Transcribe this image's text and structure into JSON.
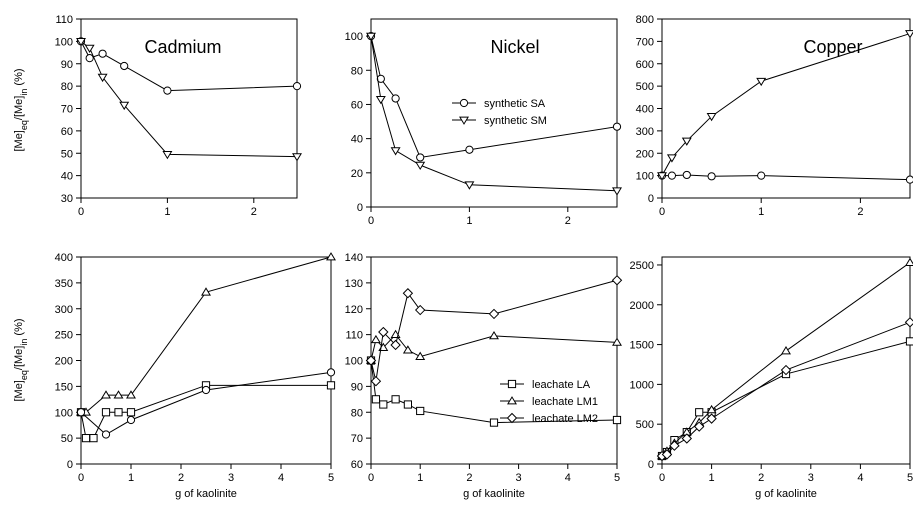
{
  "figure": {
    "ylabel_top": "[Me]eq/[Me]in (%)",
    "ylabel_bottom": "[Me]eq/[Me]in (%)",
    "xlabel_bottom": [
      "g of kaolinite",
      "g of kaolinite",
      "g of kaolinite"
    ]
  },
  "chart_data": [
    {
      "type": "line",
      "title": "Cadmium",
      "xlim": [
        0,
        2.5
      ],
      "ylim": [
        30,
        110
      ],
      "xticks": [
        0,
        1,
        2
      ],
      "yticks": [
        30,
        40,
        50,
        60,
        70,
        80,
        90,
        100,
        110
      ],
      "series": [
        {
          "name": "synthetic SA",
          "marker": "circle",
          "x": [
            0,
            0.1,
            0.25,
            0.5,
            1.0,
            2.5
          ],
          "y": [
            100,
            92.5,
            94.5,
            89,
            78,
            80
          ]
        },
        {
          "name": "synthetic SM",
          "marker": "triangle-down",
          "x": [
            0,
            0.1,
            0.25,
            0.5,
            1.0,
            2.5
          ],
          "y": [
            100,
            97,
            84,
            71.5,
            49.5,
            48.5
          ]
        }
      ]
    },
    {
      "type": "line",
      "title": "Nickel",
      "xlim": [
        0,
        2.5
      ],
      "ylim": [
        0,
        110
      ],
      "xticks": [
        0,
        1,
        2
      ],
      "yticks": [
        0,
        20,
        40,
        60,
        80,
        100
      ],
      "legend": {
        "placement": "center-right",
        "entries": [
          "synthetic SA",
          "synthetic SM"
        ]
      },
      "series": [
        {
          "name": "synthetic SA",
          "marker": "circle",
          "x": [
            0,
            0.1,
            0.25,
            0.5,
            1.0,
            2.5
          ],
          "y": [
            100,
            75,
            63.5,
            29,
            33.5,
            47
          ]
        },
        {
          "name": "synthetic SM",
          "marker": "triangle-down",
          "x": [
            0,
            0.1,
            0.25,
            0.5,
            1.0,
            2.5
          ],
          "y": [
            100,
            63,
            33,
            24.5,
            13,
            9.5
          ]
        }
      ]
    },
    {
      "type": "line",
      "title": "Copper",
      "xlim": [
        0,
        2.5
      ],
      "ylim": [
        0,
        800
      ],
      "xticks": [
        0,
        1,
        2
      ],
      "yticks": [
        0,
        100,
        200,
        300,
        400,
        500,
        600,
        700,
        800
      ],
      "series": [
        {
          "name": "synthetic SA",
          "marker": "circle",
          "x": [
            0,
            0.1,
            0.25,
            0.5,
            1.0,
            2.5
          ],
          "y": [
            100,
            100,
            103,
            97,
            100,
            82
          ]
        },
        {
          "name": "synthetic SM",
          "marker": "triangle-down",
          "x": [
            0,
            0.1,
            0.25,
            0.5,
            1.0,
            2.5
          ],
          "y": [
            100,
            180,
            255,
            365,
            522,
            735
          ]
        }
      ]
    },
    {
      "type": "line",
      "xlabel": "g of kaolinite",
      "xlim": [
        0,
        5
      ],
      "ylim": [
        0,
        400
      ],
      "xticks": [
        0,
        1,
        2,
        3,
        4,
        5
      ],
      "yticks": [
        0,
        50,
        100,
        150,
        200,
        250,
        300,
        350,
        400
      ],
      "series": [
        {
          "name": "leachate LA",
          "marker": "square",
          "x": [
            0,
            0.1,
            0.25,
            0.5,
            0.75,
            1.0,
            2.5,
            5
          ],
          "y": [
            100,
            50,
            50,
            100,
            100,
            100,
            152,
            152
          ]
        },
        {
          "name": "leachate LM1",
          "marker": "triangle-up",
          "x": [
            0,
            0.1,
            0.5,
            0.75,
            1.0,
            2.5,
            5
          ],
          "y": [
            100,
            100,
            133,
            133,
            133,
            332,
            400
          ]
        },
        {
          "name": "leachate LM2",
          "marker": "circle",
          "x": [
            0,
            0.5,
            1.0,
            2.5,
            5
          ],
          "y": [
            100,
            57,
            85,
            143,
            177
          ]
        }
      ]
    },
    {
      "type": "line",
      "xlabel": "g of kaolinite",
      "xlim": [
        0,
        5
      ],
      "ylim": [
        60,
        140
      ],
      "xticks": [
        0,
        1,
        2,
        3,
        4,
        5
      ],
      "yticks": [
        60,
        70,
        80,
        90,
        100,
        110,
        120,
        130,
        140
      ],
      "legend": {
        "placement": "lower-right",
        "entries": [
          "leachate LA",
          "leachate LM1",
          "leachate LM2"
        ]
      },
      "series": [
        {
          "name": "leachate LA",
          "marker": "square",
          "x": [
            0,
            0.1,
            0.25,
            0.5,
            0.75,
            1.0,
            2.5,
            5
          ],
          "y": [
            100,
            85,
            83,
            85,
            83,
            80.5,
            76,
            77
          ]
        },
        {
          "name": "leachate LM1",
          "marker": "triangle-up",
          "x": [
            0,
            0.1,
            0.25,
            0.5,
            0.75,
            1.0,
            2.5,
            5
          ],
          "y": [
            100,
            108,
            105,
            110,
            104,
            101.5,
            109.5,
            107
          ]
        },
        {
          "name": "leachate LM2",
          "marker": "diamond",
          "x": [
            0,
            0.1,
            0.25,
            0.5,
            0.75,
            1.0,
            2.5,
            5
          ],
          "y": [
            100,
            92,
            111,
            106,
            126,
            119.5,
            118,
            131
          ]
        }
      ]
    },
    {
      "type": "line",
      "xlabel": "g of kaolinite",
      "xlim": [
        0,
        5
      ],
      "ylim": [
        0,
        2600
      ],
      "xticks": [
        0,
        1,
        2,
        3,
        4,
        5
      ],
      "yticks": [
        0,
        500,
        1000,
        1500,
        2000,
        2500
      ],
      "series": [
        {
          "name": "leachate LA",
          "marker": "square",
          "x": [
            0,
            0.1,
            0.25,
            0.5,
            0.75,
            1.0,
            2.5,
            5
          ],
          "y": [
            100,
            150,
            300,
            400,
            650,
            650,
            1130,
            1540
          ]
        },
        {
          "name": "leachate LM1",
          "marker": "triangle-up",
          "x": [
            0,
            0.1,
            0.25,
            0.5,
            0.75,
            1.0,
            2.5,
            5
          ],
          "y": [
            100,
            160,
            260,
            400,
            520,
            680,
            1420,
            2530
          ]
        },
        {
          "name": "leachate LM2",
          "marker": "diamond",
          "x": [
            0,
            0.1,
            0.25,
            0.5,
            0.75,
            1.0,
            2.5,
            5
          ],
          "y": [
            100,
            120,
            230,
            320,
            470,
            570,
            1180,
            1780
          ]
        }
      ]
    }
  ]
}
